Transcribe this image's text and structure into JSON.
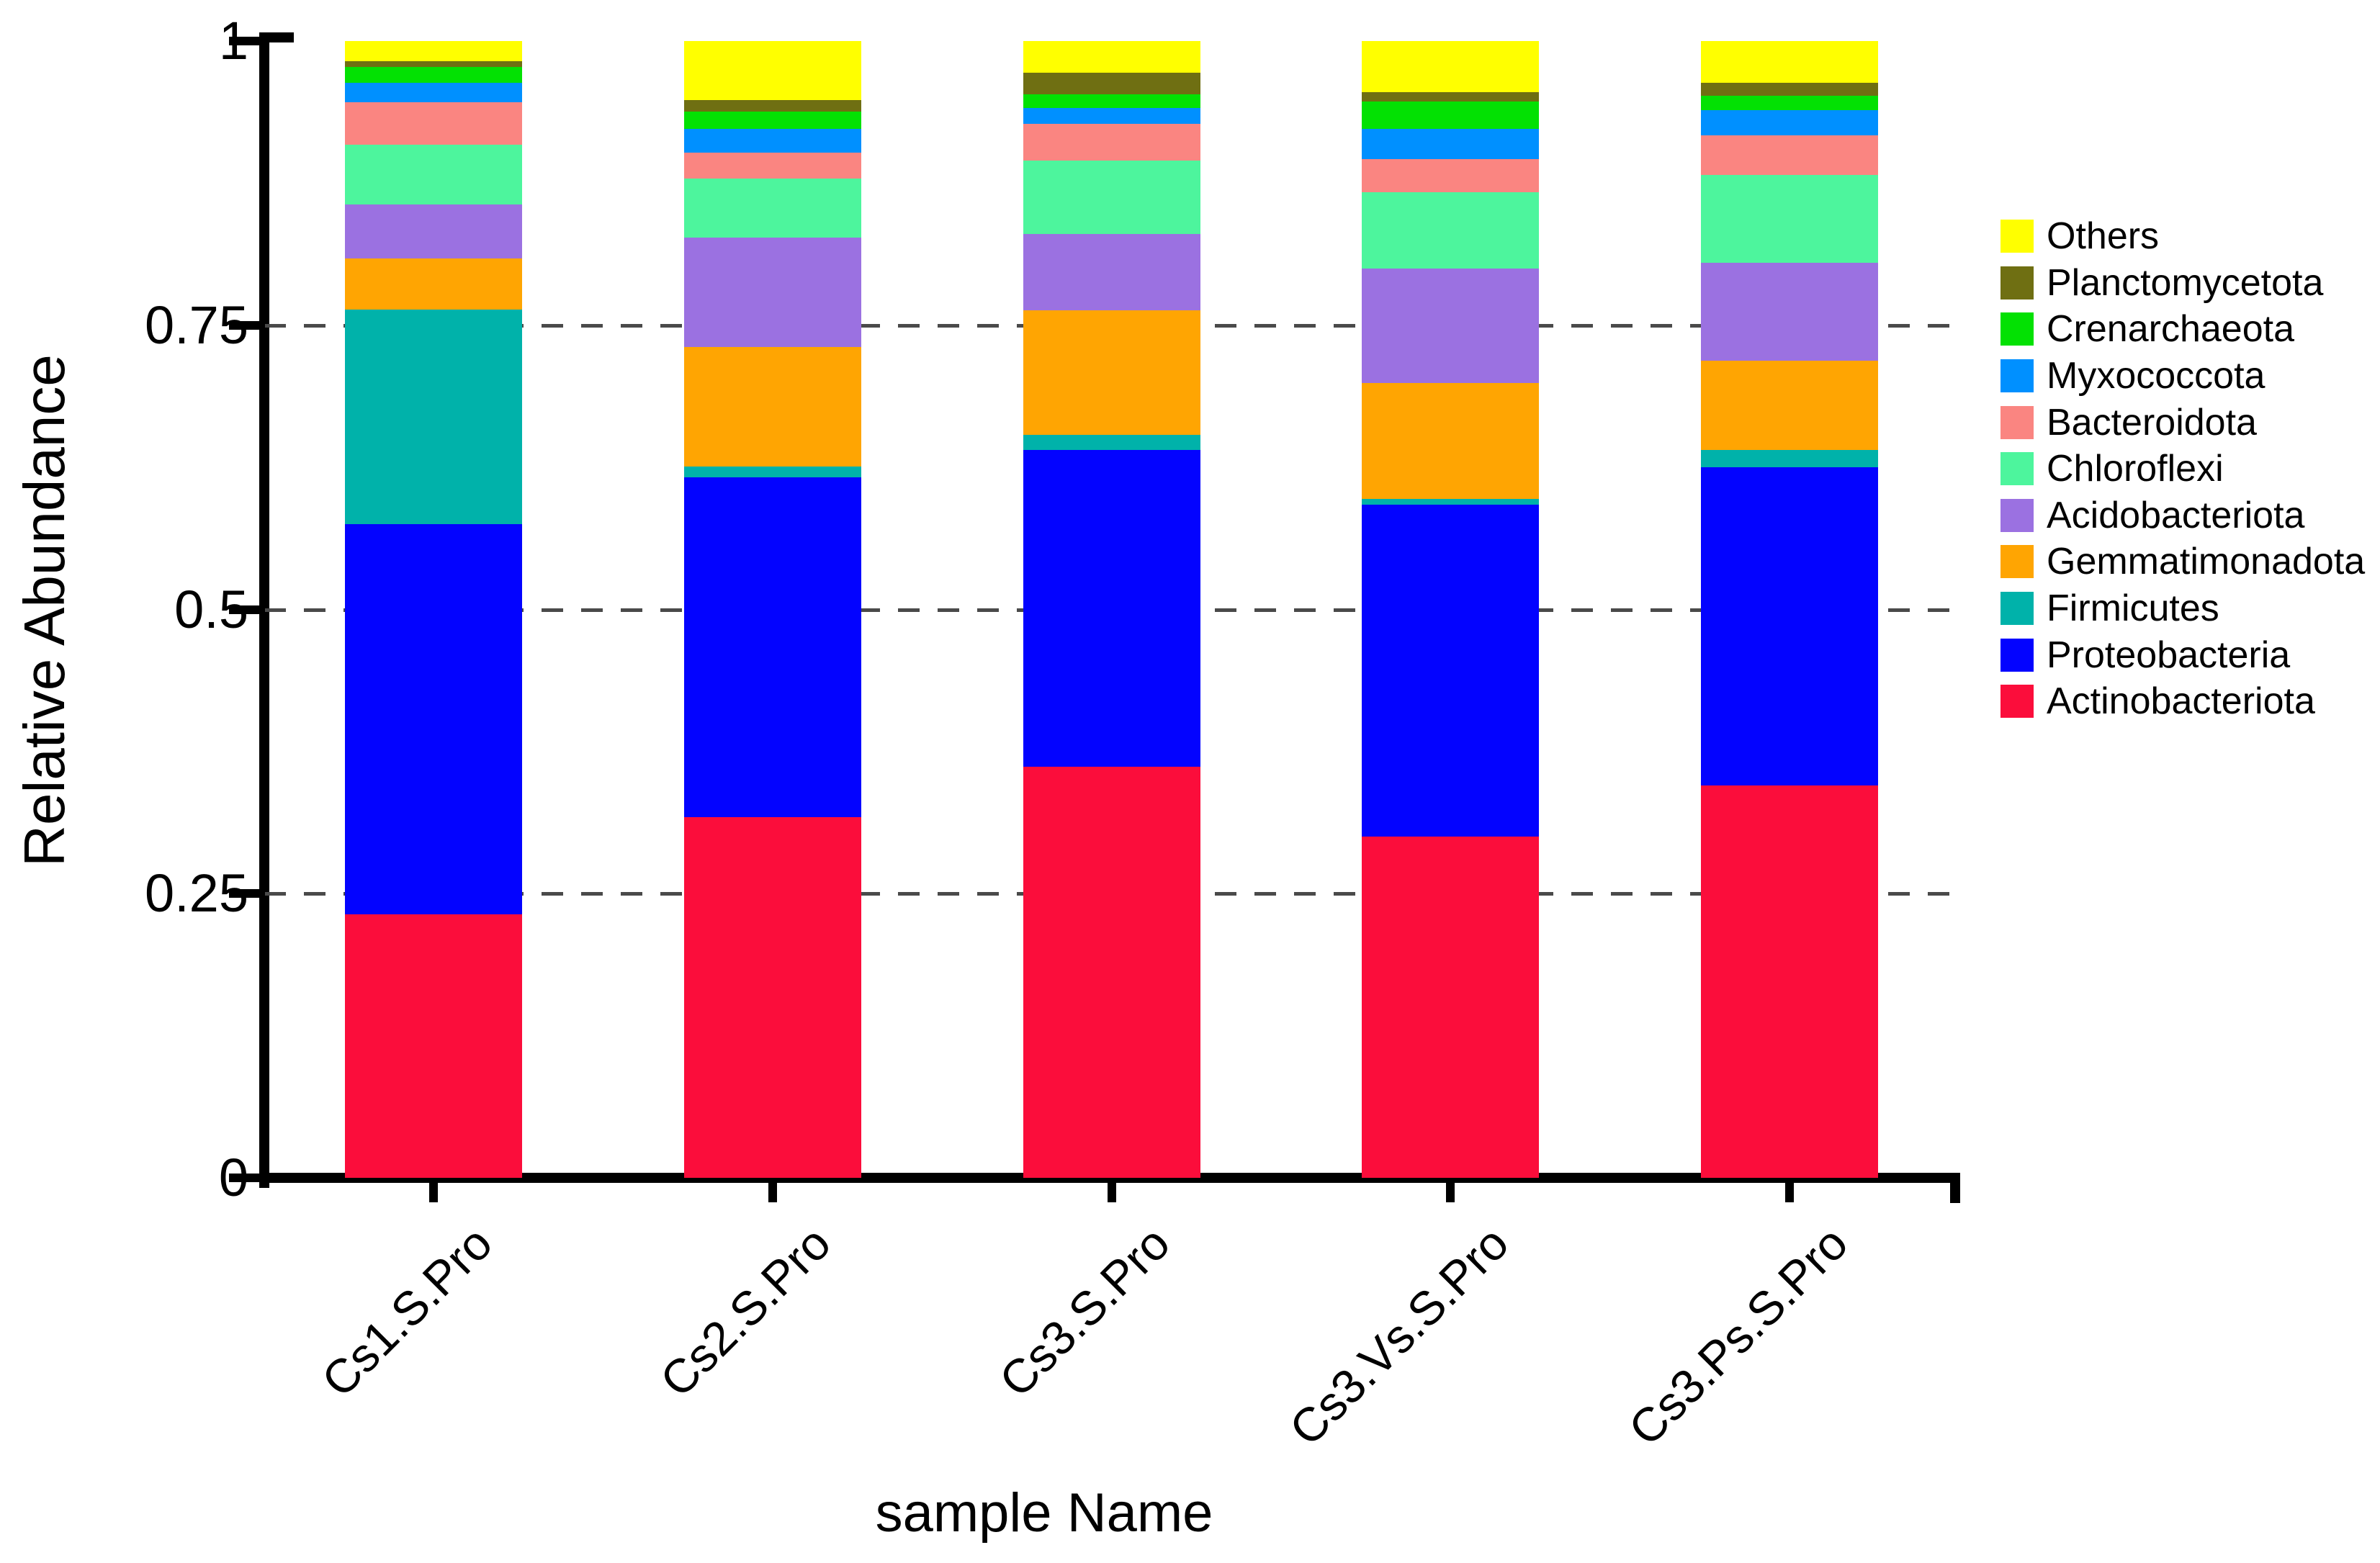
{
  "chart_data": {
    "type": "bar",
    "stacked": true,
    "title": "",
    "xlabel": "sample Name",
    "ylabel": "Relative Abundance",
    "ylim": [
      0,
      1
    ],
    "ytick_labels": [
      "0",
      "0.25",
      "0.5",
      "0.75",
      "1"
    ],
    "yticks": [
      0,
      0.25,
      0.5,
      0.75,
      1
    ],
    "gridlines": [
      0.25,
      0.5,
      0.75
    ],
    "grid_style": "dashed",
    "legend_position": "right",
    "categories": [
      "Cs1.S.Pro",
      "Cs2.S.Pro",
      "Cs3.S.Pro",
      "Cs3.Vs.S.Pro",
      "Cs3.Ps.S.Pro"
    ],
    "series": [
      {
        "name": "Actinobacteriota",
        "color": "#FB0D3B",
        "values": [
          0.232,
          0.317,
          0.362,
          0.3,
          0.345
        ]
      },
      {
        "name": "Proteobacteria",
        "color": "#0303FF",
        "values": [
          0.343,
          0.299,
          0.279,
          0.292,
          0.28
        ]
      },
      {
        "name": "Firmicutes",
        "color": "#00B2AA",
        "values": [
          0.189,
          0.01,
          0.013,
          0.005,
          0.015
        ]
      },
      {
        "name": "Gemmatimonadota",
        "color": "#FFA502",
        "values": [
          0.045,
          0.105,
          0.11,
          0.102,
          0.079
        ]
      },
      {
        "name": "Acidobacteriota",
        "color": "#9B71E1",
        "values": [
          0.047,
          0.096,
          0.067,
          0.101,
          0.086
        ]
      },
      {
        "name": "Chloroflexi",
        "color": "#4DF59D",
        "values": [
          0.053,
          0.052,
          0.065,
          0.067,
          0.077
        ]
      },
      {
        "name": "Bacteroidota",
        "color": "#FA8581",
        "values": [
          0.037,
          0.023,
          0.032,
          0.029,
          0.035
        ]
      },
      {
        "name": "Myxococcota",
        "color": "#0090FF",
        "values": [
          0.017,
          0.021,
          0.014,
          0.027,
          0.022
        ]
      },
      {
        "name": "Crenarchaeota",
        "color": "#03E103",
        "values": [
          0.014,
          0.015,
          0.012,
          0.024,
          0.013
        ]
      },
      {
        "name": "Planctomycetota",
        "color": "#6F6F12",
        "values": [
          0.005,
          0.01,
          0.019,
          0.008,
          0.011
        ]
      },
      {
        "name": "Others",
        "color": "#FFFF00",
        "values": [
          0.018,
          0.052,
          0.028,
          0.045,
          0.037
        ]
      }
    ],
    "legend_order_top_to_bottom": [
      "Others",
      "Planctomycetota",
      "Crenarchaeota",
      "Myxococcota",
      "Bacteroidota",
      "Chloroflexi",
      "Acidobacteriota",
      "Gemmatimonadota",
      "Firmicutes",
      "Proteobacteria",
      "Actinobacteriota"
    ]
  }
}
